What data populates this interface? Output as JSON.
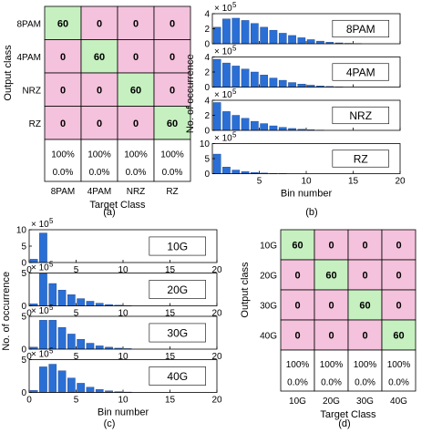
{
  "colors": {
    "diag": "#c6f0c0",
    "offdiag": "#f4c2dc",
    "correct": "#22cc22",
    "error": "#dd2222",
    "bar": "#2a6fd6",
    "grid": "#000000"
  },
  "panel_labels": {
    "a": "(a)",
    "b": "(b)",
    "c": "(c)",
    "d": "(d)"
  },
  "scale_note": "× 10",
  "scale_exp": "5",
  "chart_data": [
    {
      "type": "heatmap",
      "panel": "a",
      "xlabel": "Target Class",
      "ylabel": "Output class",
      "categories": [
        "8PAM",
        "4PAM",
        "NRZ",
        "RZ"
      ],
      "matrix": [
        [
          60,
          0,
          0,
          0
        ],
        [
          0,
          60,
          0,
          0
        ],
        [
          0,
          0,
          60,
          0
        ],
        [
          0,
          0,
          0,
          60
        ]
      ],
      "summary_correct": [
        "100%",
        "100%",
        "100%",
        "100%"
      ],
      "summary_error": [
        "0.0%",
        "0.0%",
        "0.0%",
        "0.0%"
      ]
    },
    {
      "type": "bar",
      "panel": "b",
      "xlabel": "Bin number",
      "ylabel": "No. of occurrence",
      "xlim": [
        0,
        20
      ],
      "xticks": [
        "5",
        "10",
        "15",
        "20"
      ],
      "series": [
        {
          "name": "8PAM",
          "ylim": [
            0,
            4
          ],
          "yticks": [
            "0",
            "2",
            "4"
          ],
          "values": [
            2.2,
            3.3,
            3.4,
            3.1,
            2.7,
            2.2,
            1.8,
            1.4,
            1.1,
            0.8,
            0.55,
            0.35,
            0.2,
            0.12,
            0.06,
            0.03
          ]
        },
        {
          "name": "4PAM",
          "ylim": [
            0,
            4
          ],
          "yticks": [
            "0",
            "2",
            "4"
          ],
          "values": [
            3.7,
            3.2,
            2.8,
            2.4,
            2.0,
            1.6,
            1.2,
            0.9,
            0.6,
            0.4,
            0.25,
            0.15,
            0.08,
            0.04
          ]
        },
        {
          "name": "NRZ",
          "ylim": [
            0,
            4
          ],
          "yticks": [
            "0",
            "2",
            "4"
          ],
          "values": [
            3.7,
            2.5,
            2.0,
            1.6,
            1.2,
            0.9,
            0.6,
            0.4,
            0.25,
            0.15,
            0.08,
            0.04
          ]
        },
        {
          "name": "RZ",
          "ylim": [
            0,
            10
          ],
          "yticks": [
            "0",
            "5",
            "10"
          ],
          "values": [
            6.5,
            2.2,
            1.2,
            0.7,
            0.4,
            0.2,
            0.1,
            0.05
          ]
        }
      ]
    },
    {
      "type": "bar",
      "panel": "c",
      "xlabel": "Bin number",
      "ylabel": "No. of occurrence",
      "xlim": [
        0,
        20
      ],
      "xticks": [
        "0",
        "5",
        "10",
        "15",
        "20"
      ],
      "series": [
        {
          "name": "10G",
          "ylim": [
            0,
            10
          ],
          "yticks": [
            "0",
            "5",
            "10"
          ],
          "values": [
            1.0,
            9.0
          ]
        },
        {
          "name": "20G",
          "ylim": [
            0,
            5
          ],
          "yticks": [
            "0",
            "5"
          ],
          "values": [
            0.3,
            4.9,
            3.4,
            2.4,
            1.7,
            1.1,
            0.7,
            0.4,
            0.2,
            0.1,
            0.05
          ]
        },
        {
          "name": "30G",
          "ylim": [
            0,
            5
          ],
          "yticks": [
            "0",
            "5"
          ],
          "values": [
            0.3,
            4.4,
            4.4,
            3.3,
            2.3,
            1.5,
            0.9,
            0.5,
            0.3,
            0.15,
            0.08
          ]
        },
        {
          "name": "40G",
          "ylim": [
            0,
            5
          ],
          "yticks": [
            "0",
            "5"
          ],
          "values": [
            0.3,
            3.9,
            4.3,
            3.3,
            2.2,
            1.4,
            0.8,
            0.45,
            0.25,
            0.12,
            0.06
          ]
        }
      ]
    },
    {
      "type": "heatmap",
      "panel": "d",
      "xlabel": "Target Class",
      "ylabel": "Output class",
      "categories": [
        "10G",
        "20G",
        "30G",
        "40G"
      ],
      "matrix": [
        [
          60,
          0,
          0,
          0
        ],
        [
          0,
          60,
          0,
          0
        ],
        [
          0,
          0,
          60,
          0
        ],
        [
          0,
          0,
          0,
          60
        ]
      ],
      "summary_correct": [
        "100%",
        "100%",
        "100%",
        "100%"
      ],
      "summary_error": [
        "0.0%",
        "0.0%",
        "0.0%",
        "0.0%"
      ]
    }
  ]
}
